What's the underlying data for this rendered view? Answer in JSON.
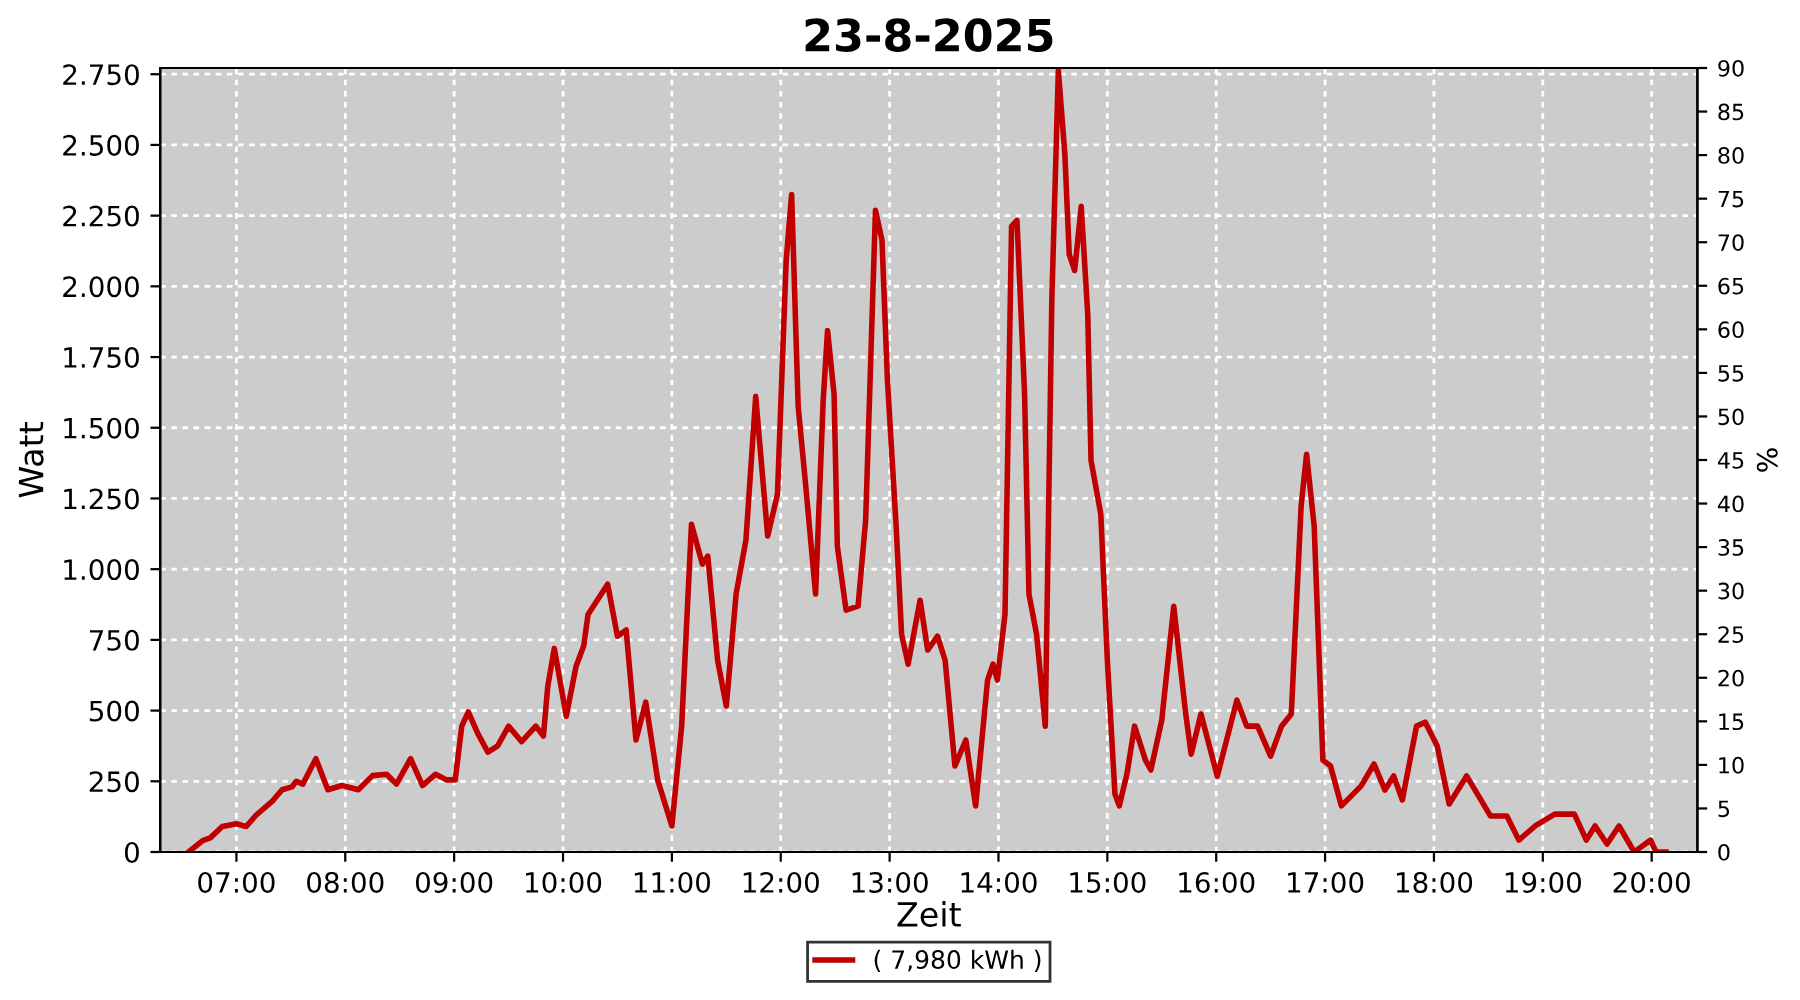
{
  "chart_data": {
    "type": "line",
    "title": "23-8-2025",
    "xlabel": "Zeit",
    "ylabel": "Watt",
    "y2label": "%",
    "x": [
      6.56,
      6.69,
      6.76,
      6.87,
      7.0,
      7.09,
      7.18,
      7.33,
      7.42,
      7.51,
      7.55,
      7.61,
      7.73,
      7.84,
      7.97,
      8.12,
      8.25,
      8.38,
      8.47,
      8.6,
      8.71,
      8.83,
      8.93,
      9.01,
      9.07,
      9.13,
      9.22,
      9.31,
      9.4,
      9.5,
      9.62,
      9.75,
      9.82,
      9.86,
      9.92,
      10.03,
      10.12,
      10.19,
      10.23,
      10.41,
      10.5,
      10.58,
      10.67,
      10.76,
      10.87,
      11.0,
      11.09,
      11.18,
      11.28,
      11.33,
      11.42,
      11.5,
      11.59,
      11.68,
      11.77,
      11.88,
      11.97,
      12.05,
      12.1,
      12.16,
      12.23,
      12.32,
      12.39,
      12.43,
      12.49,
      12.52,
      12.6,
      12.71,
      12.78,
      12.87,
      12.93,
      12.98,
      13.06,
      13.11,
      13.17,
      13.28,
      13.35,
      13.44,
      13.51,
      13.6,
      13.7,
      13.79,
      13.9,
      13.95,
      13.99,
      14.06,
      14.12,
      14.17,
      14.24,
      14.28,
      14.35,
      14.43,
      14.49,
      14.55,
      14.61,
      14.65,
      14.7,
      14.76,
      14.82,
      14.85,
      14.94,
      15.0,
      15.07,
      15.11,
      15.18,
      15.25,
      15.35,
      15.4,
      15.5,
      15.61,
      15.72,
      15.77,
      15.86,
      16.01,
      16.19,
      16.28,
      16.38,
      16.5,
      16.6,
      16.69,
      16.78,
      16.83,
      16.9,
      16.98,
      17.05,
      17.15,
      17.33,
      17.45,
      17.55,
      17.63,
      17.71,
      17.84,
      17.92,
      18.03,
      18.14,
      18.3,
      18.52,
      18.67,
      18.78,
      18.93,
      19.11,
      19.29,
      19.4,
      19.48,
      19.59,
      19.7,
      19.84,
      19.99,
      20.04,
      20.13
    ],
    "series": [
      {
        "name": "( 7,980 kWh )",
        "color": "#c00000",
        "values": [
          0,
          40,
          50,
          90,
          100,
          90,
          130,
          180,
          220,
          230,
          250,
          240,
          330,
          220,
          235,
          220,
          270,
          275,
          240,
          330,
          235,
          275,
          255,
          255,
          445,
          495,
          417,
          353,
          375,
          445,
          390,
          445,
          410,
          586,
          720,
          480,
          657,
          728,
          840,
          947,
          763,
          785,
          396,
          530,
          254,
          92,
          445,
          1159,
          1018,
          1046,
          678,
          516,
          912,
          1102,
          1611,
          1117,
          1265,
          2092,
          2325,
          1576,
          1293,
          912,
          1597,
          1844,
          1618,
          1081,
          855,
          869,
          1173,
          2269,
          2163,
          1668,
          1152,
          770,
          664,
          890,
          714,
          763,
          678,
          304,
          396,
          163,
          608,
          664,
          608,
          841,
          2212,
          2233,
          1618,
          912,
          770,
          445,
          1951,
          2763,
          2466,
          2113,
          2056,
          2283,
          1901,
          1385,
          1194,
          678,
          205,
          163,
          276,
          445,
          325,
          290,
          466,
          869,
          488,
          346,
          488,
          268,
          537,
          445,
          445,
          339,
          445,
          488,
          1223,
          1406,
          1152,
          325,
          304,
          163,
          233,
          311,
          219,
          269,
          184,
          445,
          459,
          375,
          170,
          269,
          127,
          127,
          42,
          92,
          134,
          134,
          42,
          92,
          28,
          92,
          0,
          42,
          0,
          0
        ]
      }
    ],
    "xlim": [
      6.3,
      20.42
    ],
    "xticks": [
      {
        "value": 7,
        "label": "07:00"
      },
      {
        "value": 8,
        "label": "08:00"
      },
      {
        "value": 9,
        "label": "09:00"
      },
      {
        "value": 10,
        "label": "10:00"
      },
      {
        "value": 11,
        "label": "11:00"
      },
      {
        "value": 12,
        "label": "12:00"
      },
      {
        "value": 13,
        "label": "13:00"
      },
      {
        "value": 14,
        "label": "14:00"
      },
      {
        "value": 15,
        "label": "15:00"
      },
      {
        "value": 16,
        "label": "16:00"
      },
      {
        "value": 17,
        "label": "17:00"
      },
      {
        "value": 18,
        "label": "18:00"
      },
      {
        "value": 19,
        "label": "19:00"
      },
      {
        "value": 20,
        "label": "20:00"
      }
    ],
    "ylim": [
      0,
      2772
    ],
    "yticks": [
      0,
      {
        "value": 250,
        "label": "250"
      },
      {
        "value": 500,
        "label": "500"
      },
      {
        "value": 750,
        "label": "750"
      },
      {
        "value": 1000,
        "label": "1.000"
      },
      {
        "value": 1250,
        "label": "1.250"
      },
      {
        "value": 1500,
        "label": "1.500"
      },
      {
        "value": 1750,
        "label": "1.750"
      },
      {
        "value": 2000,
        "label": "2.000"
      },
      {
        "value": 2250,
        "label": "2.250"
      },
      {
        "value": 2500,
        "label": "2.500"
      },
      {
        "value": 2750,
        "label": "2.750"
      }
    ],
    "y2lim": [
      0,
      90
    ],
    "y2ticks": [
      0,
      5,
      10,
      15,
      20,
      25,
      30,
      35,
      40,
      45,
      50,
      55,
      60,
      65,
      70,
      75,
      80,
      85,
      90
    ],
    "grid": true,
    "legend": "bottom",
    "marker": "none",
    "line_style": "solid"
  }
}
